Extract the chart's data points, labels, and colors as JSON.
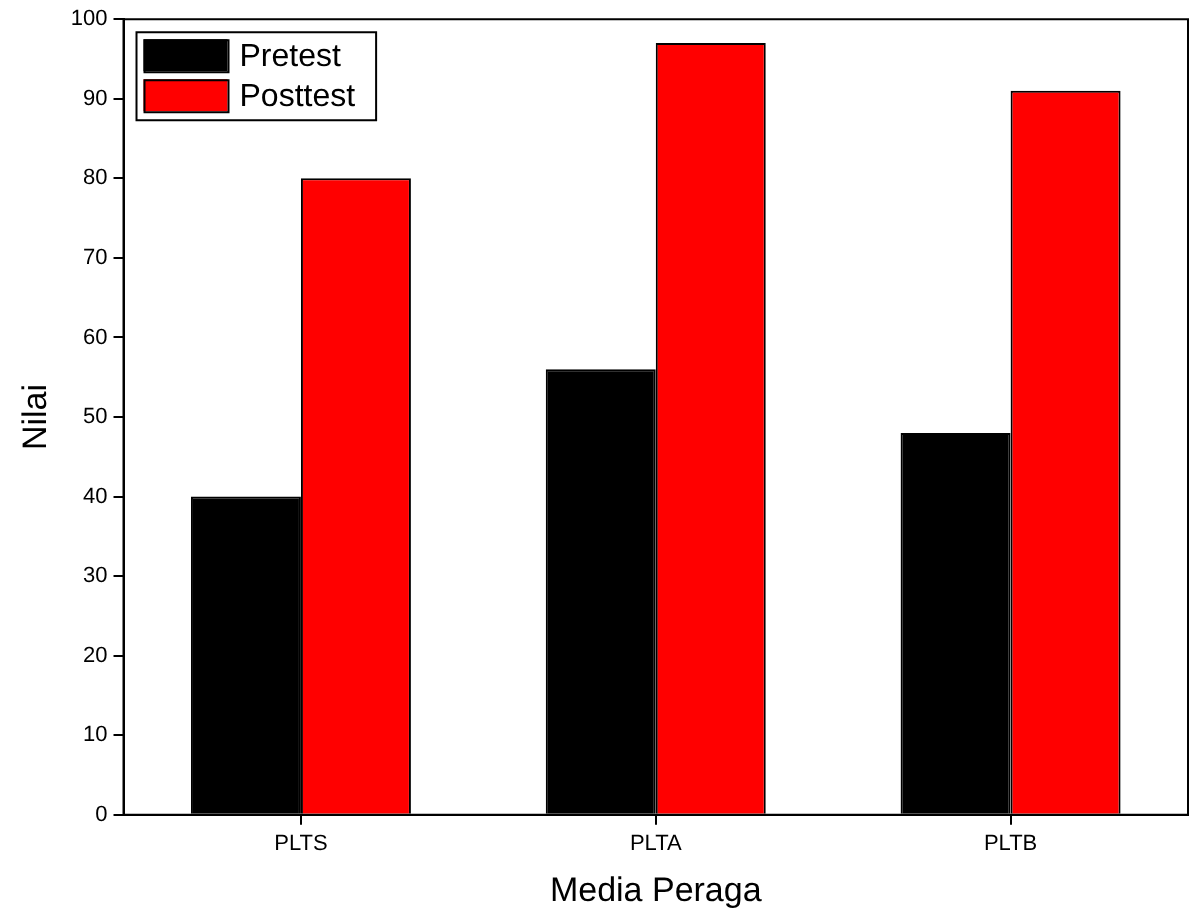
{
  "chart_data": {
    "type": "bar",
    "xlabel": "Media Peraga",
    "ylabel": "Nilai",
    "categories": [
      "PLTS",
      "PLTA",
      "PLTB"
    ],
    "series": [
      {
        "name": "Pretest",
        "color": "#000000",
        "values": [
          40,
          56,
          48
        ]
      },
      {
        "name": "Posttest",
        "color": "#ff0000",
        "values": [
          80,
          97,
          91
        ]
      }
    ],
    "ylim": [
      0,
      100
    ],
    "yticks": [
      0,
      10,
      20,
      30,
      40,
      50,
      60,
      70,
      80,
      90,
      100
    ],
    "grid": false,
    "legend": "top left"
  }
}
